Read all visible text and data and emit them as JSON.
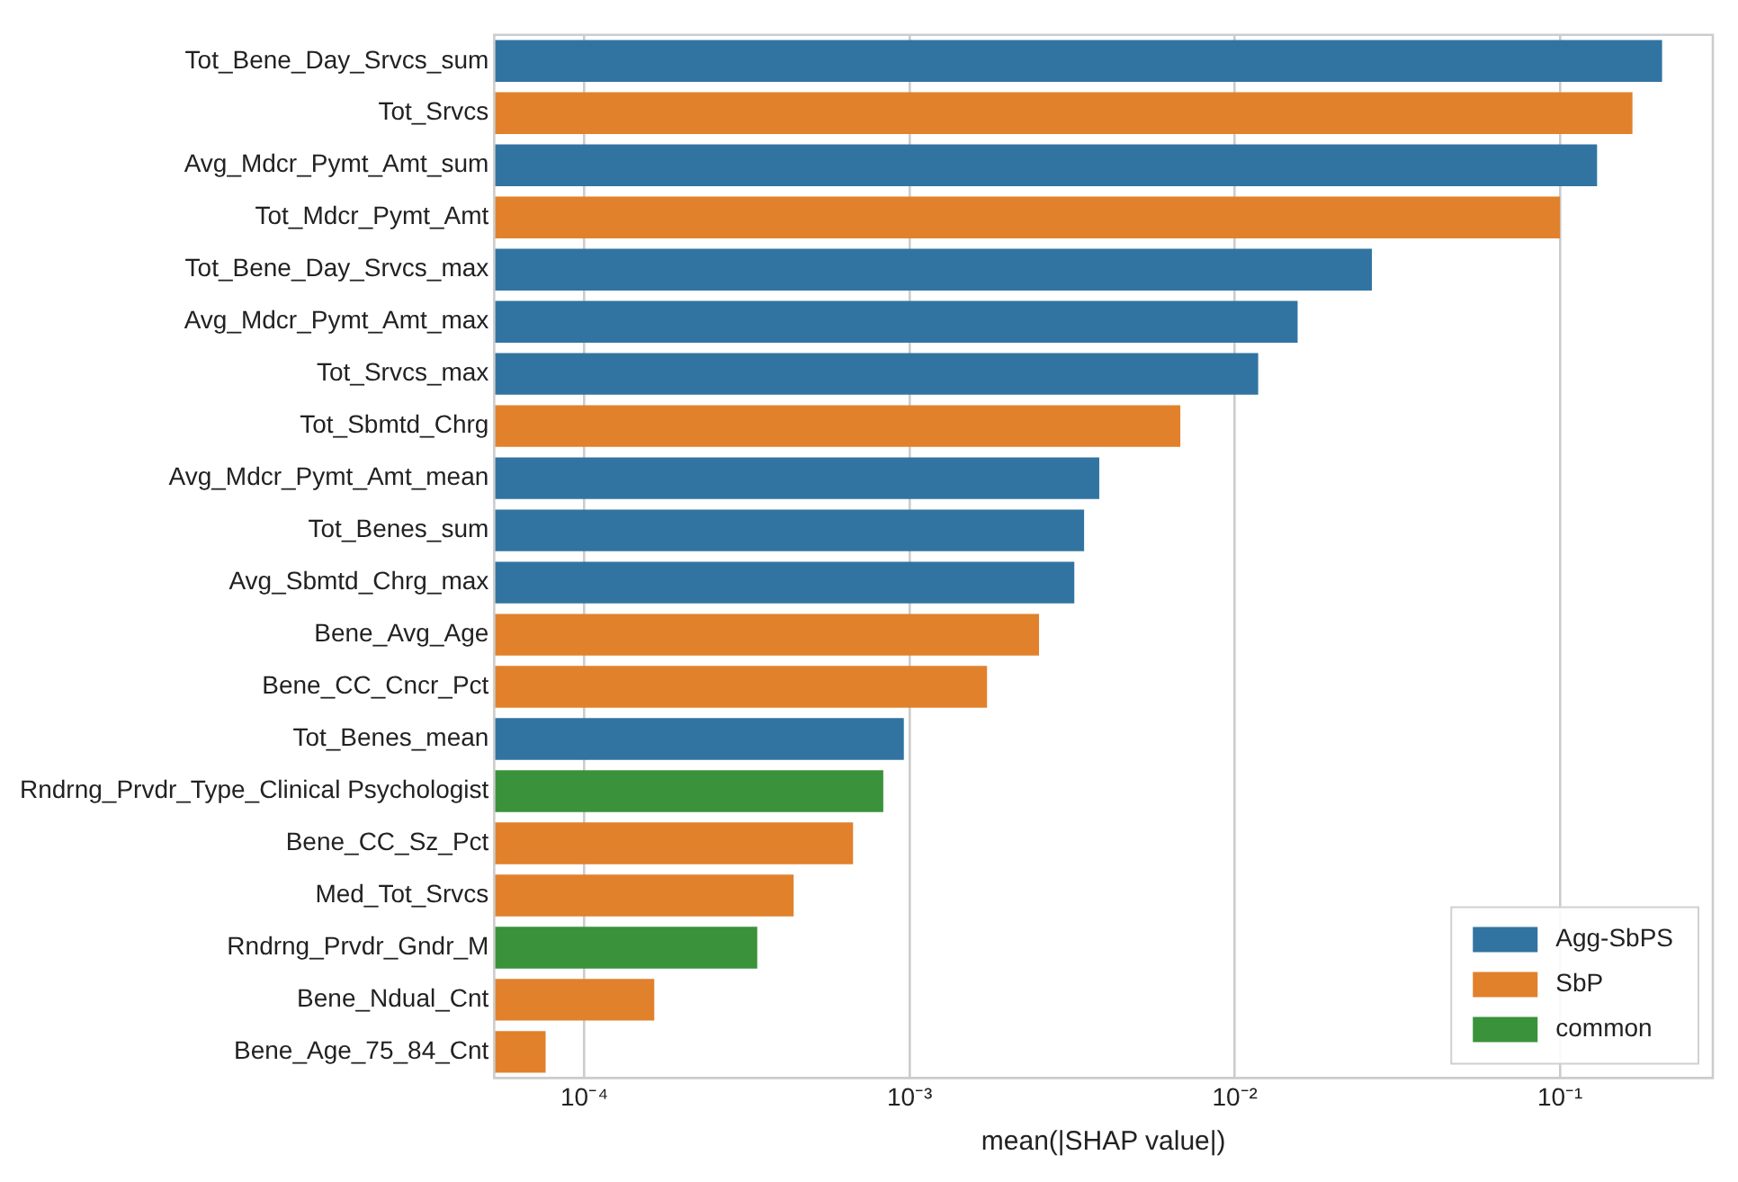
{
  "chart_data": {
    "type": "bar",
    "orientation": "horizontal",
    "xlabel": "mean(|SHAP value|)",
    "log": "x",
    "grid": "x",
    "legend": "bottom right",
    "categories": [
      "Tot_Bene_Day_Srvcs_sum",
      "Tot_Srvcs",
      "Avg_Mdcr_Pymt_Amt_sum",
      "Tot_Mdcr_Pymt_Amt",
      "Tot_Bene_Day_Srvcs_max",
      "Avg_Mdcr_Pymt_Amt_max",
      "Tot_Srvcs_max",
      "Tot_Sbmtd_Chrg",
      "Avg_Mdcr_Pymt_Amt_mean",
      "Tot_Benes_sum",
      "Avg_Sbmtd_Chrg_max",
      "Bene_Avg_Age",
      "Bene_CC_Cncr_Pct",
      "Tot_Benes_mean",
      "Rndrng_Prvdr_Type_Clinical Psychologist",
      "Bene_CC_Sz_Pct",
      "Med_Tot_Srvcs",
      "Rndrng_Prvdr_Gndr_M",
      "Bene_Ndual_Cnt",
      "Bene_Age_75_84_Cnt"
    ],
    "series": [
      {
        "name": "Agg-SbPS",
        "color": "#3274a1",
        "values": [
          0.206,
          null,
          0.13,
          null,
          0.0264,
          0.0156,
          0.0118,
          null,
          0.00383,
          0.00344,
          0.00321,
          null,
          null,
          0.00096,
          null,
          null,
          null,
          null,
          null,
          null
        ]
      },
      {
        "name": "SbP",
        "color": "#e1812c",
        "values": [
          null,
          0.167,
          null,
          0.1,
          null,
          null,
          null,
          0.0068,
          null,
          null,
          null,
          0.0025,
          0.00173,
          null,
          null,
          0.00067,
          0.00044,
          null,
          0.000164,
          7.6e-05
        ]
      },
      {
        "name": "common",
        "color": "#3a923a",
        "values": [
          null,
          null,
          null,
          null,
          null,
          null,
          null,
          null,
          null,
          null,
          null,
          null,
          null,
          null,
          0.00083,
          null,
          null,
          0.00034,
          null,
          null
        ]
      }
    ],
    "xlim": [
      5.28e-05,
      0.295
    ],
    "xticks": [
      {
        "value": 0.0001,
        "label": "10⁻⁴"
      },
      {
        "value": 0.001,
        "label": "10⁻³"
      },
      {
        "value": 0.01,
        "label": "10⁻²"
      },
      {
        "value": 0.1,
        "label": "10⁻¹"
      }
    ]
  }
}
